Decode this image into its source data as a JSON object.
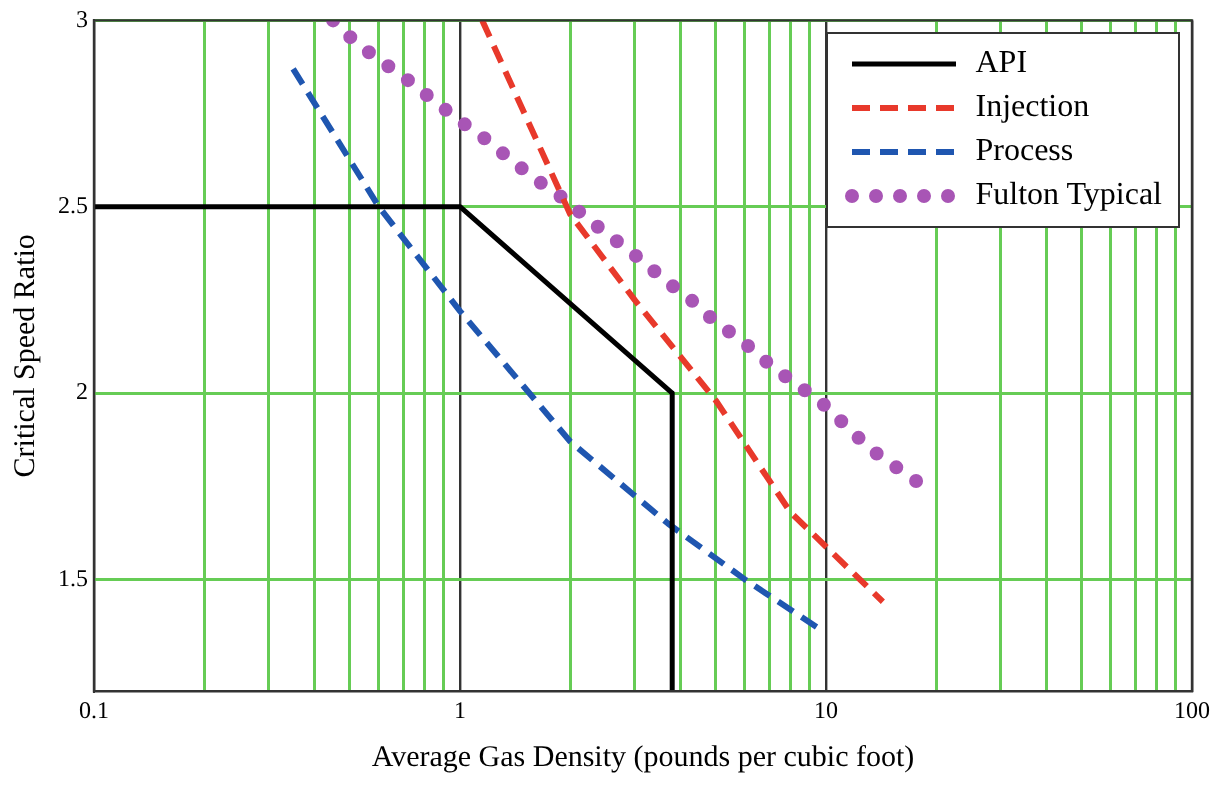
{
  "chart_data": {
    "type": "line",
    "xlabel": "Average Gas Density (pounds per cubic foot)",
    "ylabel": "Critical Speed Ratio",
    "log": "x",
    "xlim": [
      0.1,
      100
    ],
    "ylim": [
      1.2,
      3
    ],
    "xticks": [
      0.1,
      {
        "value": 0.2,
        "label": null
      },
      {
        "value": 0.3,
        "label": null
      },
      {
        "value": 0.4,
        "label": null
      },
      {
        "value": 0.5,
        "label": null
      },
      {
        "value": 0.6,
        "label": null
      },
      {
        "value": 0.7,
        "label": null
      },
      {
        "value": 0.8,
        "label": null
      },
      {
        "value": 0.9,
        "label": null
      },
      1,
      {
        "value": 2,
        "label": null
      },
      {
        "value": 3,
        "label": null
      },
      {
        "value": 4,
        "label": null
      },
      {
        "value": 5,
        "label": null
      },
      {
        "value": 6,
        "label": null
      },
      {
        "value": 7,
        "label": null
      },
      {
        "value": 8,
        "label": null
      },
      {
        "value": 9,
        "label": null
      },
      10,
      {
        "value": 20,
        "label": null
      },
      {
        "value": 30,
        "label": null
      },
      {
        "value": 40,
        "label": null
      },
      {
        "value": 50,
        "label": null
      },
      {
        "value": 60,
        "label": null
      },
      {
        "value": 70,
        "label": null
      },
      {
        "value": 80,
        "label": null
      },
      {
        "value": 90,
        "label": null
      },
      100
    ],
    "yticks": [
      1.5,
      2,
      2.5,
      3
    ],
    "grid": true,
    "legend": "top right",
    "series": [
      {
        "name": "API",
        "color": "#000000",
        "line_style": "solid",
        "x": [
          0.1,
          1,
          3.8,
          3.8
        ],
        "values": [
          2.5,
          2.5,
          2.0,
          1.2
        ]
      },
      {
        "name": "Injection",
        "color": "#e8392b",
        "line_style": "dashed",
        "x": [
          1.15,
          2,
          3,
          5,
          8,
          14.3
        ],
        "values": [
          3.0,
          2.48,
          2.25,
          1.98,
          1.68,
          1.44
        ]
      },
      {
        "name": "Process",
        "color": "#1f56b0",
        "line_style": "dashed",
        "x": [
          0.35,
          0.6,
          1,
          2,
          3.7,
          6,
          9.5
        ],
        "values": [
          2.87,
          2.5,
          2.22,
          1.87,
          1.65,
          1.5,
          1.37
        ]
      },
      {
        "name": "Fulton Typical",
        "color": "#a855b5",
        "line_style": "dotted",
        "x": [
          0.45,
          0.52,
          0.61,
          0.72,
          0.86,
          1.0,
          1.18,
          1.4,
          1.63,
          1.93,
          2.28,
          2.66,
          3.1,
          3.66,
          4.28,
          5.0,
          5.9,
          6.95,
          8.1,
          9.6,
          11.4,
          13.2,
          15.6,
          18.5
        ],
        "values": [
          3.0,
          2.94,
          2.89,
          2.84,
          2.78,
          2.73,
          2.68,
          2.62,
          2.57,
          2.52,
          2.46,
          2.41,
          2.36,
          2.3,
          2.25,
          2.19,
          2.14,
          2.08,
          2.03,
          1.98,
          1.91,
          1.85,
          1.8,
          1.75
        ]
      }
    ]
  }
}
